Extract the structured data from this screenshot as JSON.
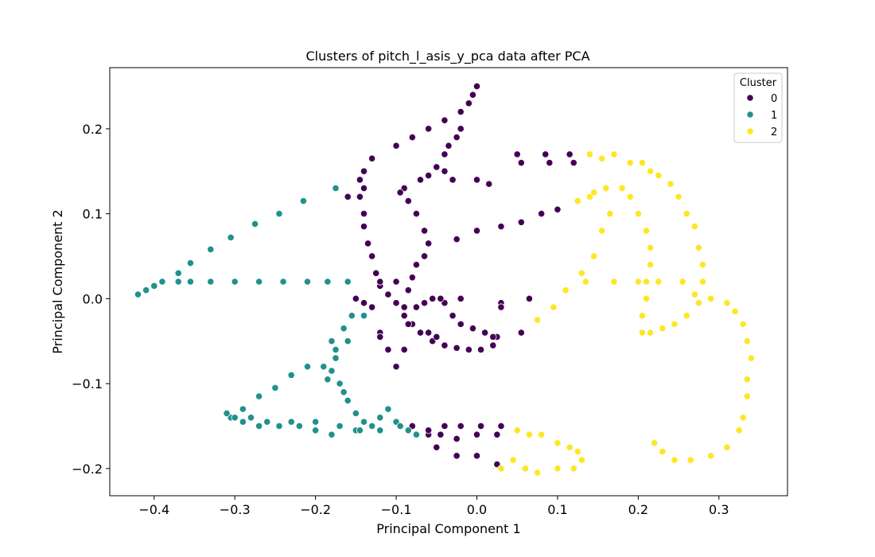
{
  "chart_data": {
    "type": "scatter",
    "title": "Clusters of pitch_l_asis_y_pca data after PCA",
    "xlabel": "Principal Component 1",
    "ylabel": "Principal Component 2",
    "xlim": [
      -0.455,
      0.385
    ],
    "ylim": [
      -0.232,
      0.272
    ],
    "xticks": [
      -0.4,
      -0.3,
      -0.2,
      -0.1,
      0.0,
      0.1,
      0.2,
      0.3
    ],
    "xtick_labels": [
      "−0.4",
      "−0.3",
      "−0.2",
      "−0.1",
      "0.0",
      "0.1",
      "0.2",
      "0.3"
    ],
    "yticks": [
      -0.2,
      -0.1,
      0.0,
      0.1,
      0.2
    ],
    "ytick_labels": [
      "−0.2",
      "−0.1",
      "0.0",
      "0.1",
      "0.2"
    ],
    "grid": false,
    "legend": {
      "title": "Cluster",
      "position": "top-right"
    },
    "series": [
      {
        "name": "0",
        "color": "#440154",
        "points": [
          [
            0.0,
            0.25
          ],
          [
            -0.005,
            0.24
          ],
          [
            -0.01,
            0.23
          ],
          [
            -0.02,
            0.22
          ],
          [
            -0.04,
            0.21
          ],
          [
            -0.06,
            0.2
          ],
          [
            -0.08,
            0.19
          ],
          [
            -0.1,
            0.18
          ],
          [
            -0.13,
            0.165
          ],
          [
            -0.14,
            0.15
          ],
          [
            -0.145,
            0.14
          ],
          [
            -0.14,
            0.13
          ],
          [
            -0.145,
            0.12
          ],
          [
            -0.14,
            0.1
          ],
          [
            -0.14,
            0.085
          ],
          [
            -0.135,
            0.065
          ],
          [
            -0.13,
            0.05
          ],
          [
            -0.125,
            0.03
          ],
          [
            -0.12,
            0.015
          ],
          [
            -0.11,
            0.005
          ],
          [
            -0.1,
            -0.005
          ],
          [
            -0.09,
            -0.02
          ],
          [
            -0.08,
            -0.03
          ],
          [
            -0.07,
            -0.04
          ],
          [
            -0.055,
            -0.05
          ],
          [
            -0.04,
            -0.055
          ],
          [
            -0.025,
            -0.058
          ],
          [
            -0.01,
            -0.06
          ],
          [
            0.005,
            -0.06
          ],
          [
            0.02,
            -0.055
          ],
          [
            0.025,
            -0.045
          ],
          [
            -0.02,
            0.2
          ],
          [
            -0.025,
            0.19
          ],
          [
            -0.035,
            0.18
          ],
          [
            -0.04,
            0.17
          ],
          [
            -0.05,
            0.155
          ],
          [
            -0.06,
            0.145
          ],
          [
            -0.07,
            0.14
          ],
          [
            -0.09,
            0.13
          ],
          [
            -0.095,
            0.125
          ],
          [
            -0.085,
            0.115
          ],
          [
            -0.075,
            0.1
          ],
          [
            -0.065,
            0.08
          ],
          [
            -0.06,
            0.065
          ],
          [
            -0.065,
            0.05
          ],
          [
            -0.075,
            0.04
          ],
          [
            -0.08,
            0.025
          ],
          [
            -0.085,
            0.01
          ],
          [
            -0.09,
            -0.01
          ],
          [
            -0.085,
            -0.03
          ],
          [
            -0.075,
            -0.01
          ],
          [
            -0.065,
            -0.005
          ],
          [
            -0.055,
            0.0
          ],
          [
            -0.04,
            -0.005
          ],
          [
            -0.03,
            -0.02
          ],
          [
            -0.02,
            -0.03
          ],
          [
            -0.005,
            -0.035
          ],
          [
            0.01,
            -0.04
          ],
          [
            0.02,
            -0.045
          ],
          [
            0.03,
            -0.005
          ],
          [
            -0.16,
            0.12
          ],
          [
            -0.175,
            0.13
          ],
          [
            -0.15,
            0.0
          ],
          [
            -0.14,
            -0.005
          ],
          [
            -0.13,
            -0.01
          ],
          [
            -0.12,
            -0.04
          ],
          [
            -0.06,
            -0.04
          ],
          [
            -0.05,
            -0.045
          ],
          [
            -0.045,
            0.0
          ],
          [
            -0.04,
            0.15
          ],
          [
            -0.03,
            0.14
          ],
          [
            0.0,
            0.14
          ],
          [
            0.015,
            0.135
          ],
          [
            0.05,
            0.17
          ],
          [
            0.055,
            0.16
          ],
          [
            0.085,
            0.17
          ],
          [
            0.09,
            0.16
          ],
          [
            0.115,
            0.17
          ],
          [
            0.12,
            0.16
          ],
          [
            0.0,
            0.08
          ],
          [
            0.03,
            0.085
          ],
          [
            0.055,
            0.09
          ],
          [
            0.08,
            0.1
          ],
          [
            0.1,
            0.105
          ],
          [
            -0.025,
            0.07
          ],
          [
            0.065,
            0.0
          ],
          [
            0.055,
            -0.04
          ],
          [
            0.03,
            -0.01
          ],
          [
            -0.02,
            0.0
          ],
          [
            -0.06,
            -0.16
          ],
          [
            -0.045,
            -0.16
          ],
          [
            -0.025,
            -0.165
          ],
          [
            0.0,
            -0.16
          ],
          [
            0.025,
            -0.16
          ],
          [
            -0.05,
            -0.175
          ],
          [
            -0.025,
            -0.185
          ],
          [
            0.0,
            -0.185
          ],
          [
            0.025,
            -0.195
          ],
          [
            -0.06,
            -0.155
          ],
          [
            0.03,
            -0.15
          ],
          [
            0.005,
            -0.15
          ],
          [
            -0.02,
            -0.15
          ],
          [
            -0.04,
            -0.15
          ],
          [
            -0.08,
            -0.15
          ],
          [
            -0.1,
            -0.08
          ],
          [
            -0.11,
            -0.06
          ],
          [
            -0.12,
            -0.045
          ],
          [
            -0.09,
            -0.06
          ],
          [
            -0.1,
            0.02
          ],
          [
            -0.12,
            0.02
          ]
        ]
      },
      {
        "name": "1",
        "color": "#21918c",
        "points": [
          [
            -0.42,
            0.005
          ],
          [
            -0.41,
            0.01
          ],
          [
            -0.4,
            0.015
          ],
          [
            -0.39,
            0.02
          ],
          [
            -0.37,
            0.02
          ],
          [
            -0.355,
            0.02
          ],
          [
            -0.33,
            0.02
          ],
          [
            -0.3,
            0.02
          ],
          [
            -0.27,
            0.02
          ],
          [
            -0.24,
            0.02
          ],
          [
            -0.21,
            0.02
          ],
          [
            -0.185,
            0.02
          ],
          [
            -0.16,
            0.02
          ],
          [
            -0.37,
            0.03
          ],
          [
            -0.355,
            0.042
          ],
          [
            -0.33,
            0.058
          ],
          [
            -0.305,
            0.072
          ],
          [
            -0.275,
            0.088
          ],
          [
            -0.245,
            0.1
          ],
          [
            -0.215,
            0.115
          ],
          [
            -0.175,
            0.13
          ],
          [
            -0.18,
            -0.05
          ],
          [
            -0.175,
            -0.07
          ],
          [
            -0.18,
            -0.085
          ],
          [
            -0.185,
            -0.095
          ],
          [
            -0.17,
            -0.1
          ],
          [
            -0.165,
            -0.11
          ],
          [
            -0.16,
            -0.12
          ],
          [
            -0.15,
            -0.135
          ],
          [
            -0.14,
            -0.145
          ],
          [
            -0.13,
            -0.15
          ],
          [
            -0.12,
            -0.14
          ],
          [
            -0.11,
            -0.13
          ],
          [
            -0.1,
            -0.145
          ],
          [
            -0.085,
            -0.155
          ],
          [
            -0.075,
            -0.16
          ],
          [
            -0.21,
            -0.08
          ],
          [
            -0.23,
            -0.09
          ],
          [
            -0.25,
            -0.105
          ],
          [
            -0.27,
            -0.115
          ],
          [
            -0.29,
            -0.13
          ],
          [
            -0.305,
            -0.14
          ],
          [
            -0.31,
            -0.135
          ],
          [
            -0.3,
            -0.14
          ],
          [
            -0.29,
            -0.145
          ],
          [
            -0.28,
            -0.14
          ],
          [
            -0.26,
            -0.145
          ],
          [
            -0.23,
            -0.145
          ],
          [
            -0.2,
            -0.145
          ],
          [
            -0.17,
            -0.15
          ],
          [
            -0.15,
            -0.155
          ],
          [
            -0.12,
            -0.155
          ],
          [
            -0.095,
            -0.15
          ],
          [
            -0.16,
            -0.05
          ],
          [
            -0.165,
            -0.035
          ],
          [
            -0.155,
            -0.02
          ],
          [
            -0.14,
            -0.02
          ],
          [
            -0.175,
            -0.06
          ],
          [
            -0.19,
            -0.08
          ],
          [
            -0.2,
            -0.155
          ],
          [
            -0.18,
            -0.16
          ],
          [
            -0.145,
            -0.155
          ],
          [
            -0.22,
            -0.15
          ],
          [
            -0.245,
            -0.15
          ],
          [
            -0.27,
            -0.15
          ]
        ]
      },
      {
        "name": "2",
        "color": "#fde725",
        "points": [
          [
            0.14,
            0.17
          ],
          [
            0.155,
            0.165
          ],
          [
            0.17,
            0.17
          ],
          [
            0.19,
            0.16
          ],
          [
            0.205,
            0.16
          ],
          [
            0.215,
            0.15
          ],
          [
            0.225,
            0.145
          ],
          [
            0.24,
            0.135
          ],
          [
            0.25,
            0.12
          ],
          [
            0.26,
            0.1
          ],
          [
            0.27,
            0.085
          ],
          [
            0.275,
            0.06
          ],
          [
            0.28,
            0.04
          ],
          [
            0.28,
            0.02
          ],
          [
            0.27,
            0.005
          ],
          [
            0.275,
            -0.005
          ],
          [
            0.29,
            0.0
          ],
          [
            0.31,
            -0.005
          ],
          [
            0.32,
            -0.015
          ],
          [
            0.33,
            -0.03
          ],
          [
            0.335,
            -0.05
          ],
          [
            0.34,
            -0.07
          ],
          [
            0.335,
            -0.095
          ],
          [
            0.335,
            -0.115
          ],
          [
            0.33,
            -0.14
          ],
          [
            0.325,
            -0.155
          ],
          [
            0.31,
            -0.175
          ],
          [
            0.29,
            -0.185
          ],
          [
            0.265,
            -0.19
          ],
          [
            0.245,
            -0.19
          ],
          [
            0.23,
            -0.18
          ],
          [
            0.22,
            -0.17
          ],
          [
            0.18,
            0.13
          ],
          [
            0.19,
            0.12
          ],
          [
            0.2,
            0.1
          ],
          [
            0.21,
            0.08
          ],
          [
            0.215,
            0.06
          ],
          [
            0.215,
            0.04
          ],
          [
            0.21,
            0.02
          ],
          [
            0.21,
            0.0
          ],
          [
            0.205,
            -0.02
          ],
          [
            0.205,
            -0.04
          ],
          [
            0.215,
            -0.04
          ],
          [
            0.23,
            -0.035
          ],
          [
            0.245,
            -0.03
          ],
          [
            0.26,
            -0.02
          ],
          [
            0.17,
            0.02
          ],
          [
            0.2,
            0.02
          ],
          [
            0.225,
            0.02
          ],
          [
            0.255,
            0.02
          ],
          [
            0.14,
            0.12
          ],
          [
            0.16,
            0.13
          ],
          [
            0.165,
            0.1
          ],
          [
            0.155,
            0.08
          ],
          [
            0.145,
            0.05
          ],
          [
            0.13,
            0.03
          ],
          [
            0.135,
            0.02
          ],
          [
            0.11,
            0.01
          ],
          [
            0.095,
            -0.01
          ],
          [
            0.075,
            -0.025
          ],
          [
            0.125,
            0.115
          ],
          [
            0.145,
            0.125
          ],
          [
            0.03,
            -0.2
          ],
          [
            0.045,
            -0.19
          ],
          [
            0.05,
            -0.155
          ],
          [
            0.065,
            -0.16
          ],
          [
            0.08,
            -0.16
          ],
          [
            0.1,
            -0.17
          ],
          [
            0.115,
            -0.175
          ],
          [
            0.125,
            -0.18
          ],
          [
            0.13,
            -0.19
          ],
          [
            0.12,
            -0.2
          ],
          [
            0.1,
            -0.2
          ],
          [
            0.075,
            -0.205
          ],
          [
            0.06,
            -0.2
          ]
        ]
      }
    ]
  }
}
